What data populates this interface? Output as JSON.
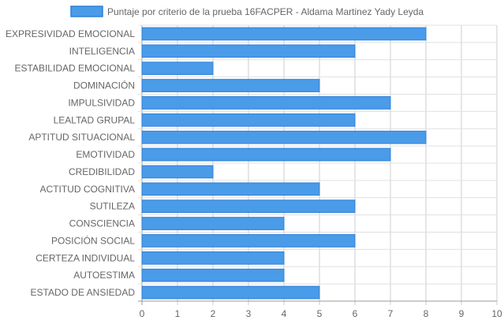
{
  "chart_data": {
    "type": "bar",
    "orientation": "horizontal",
    "categories": [
      "EXPRESIVIDAD EMOCIONAL",
      "INTELIGENCIA",
      "ESTABILIDAD EMOCIONAL",
      "DOMINACIÓN",
      "IMPULSIVIDAD",
      "LEALTAD GRUPAL",
      "APTITUD SITUACIONAL",
      "EMOTIVIDAD",
      "CREDIBILIDAD",
      "ACTITUD COGNITIVA",
      "SUTILEZA",
      "CONSCIENCIA",
      "POSICIÓN SOCIAL",
      "CERTEZA INDIVIDUAL",
      "AUTOESTIMA",
      "ESTADO DE ANSIEDAD"
    ],
    "series": [
      {
        "name": "Puntaje por criterio de la prueba 16FACPER - Aldama Martinez Yady Leyda",
        "values": [
          8,
          6,
          2,
          5,
          7,
          6,
          8,
          7,
          2,
          5,
          6,
          4,
          6,
          4,
          4,
          5
        ],
        "color": "#4a9be8",
        "border_color": "#2f7fd9"
      }
    ],
    "xlim": [
      0,
      10
    ],
    "xticks": [
      "0",
      "1",
      "2",
      "3",
      "4",
      "5",
      "6",
      "7",
      "8",
      "9",
      "10"
    ],
    "grid": true,
    "legend_position": "top"
  }
}
